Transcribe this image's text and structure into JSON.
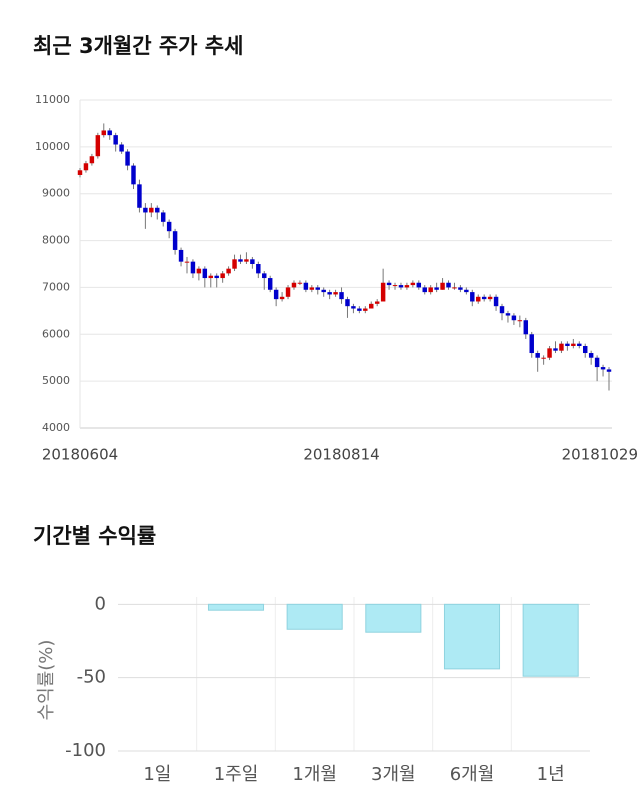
{
  "chart_data": [
    {
      "type": "candlestick",
      "title": "최근 3개월간 주가 추세",
      "categories": [
        "20180604",
        null,
        null,
        null,
        null,
        null,
        null,
        null,
        null,
        null,
        null,
        null,
        null,
        null,
        null,
        null,
        null,
        null,
        null,
        null,
        null,
        null,
        null,
        null,
        null,
        null,
        null,
        null,
        null,
        null,
        null,
        null,
        null,
        null,
        null,
        null,
        null,
        null,
        null,
        null,
        null,
        null,
        null,
        null,
        "20180814",
        null,
        null,
        null,
        null,
        null,
        null,
        null,
        null,
        null,
        null,
        null,
        null,
        null,
        null,
        null,
        null,
        null,
        null,
        null,
        null,
        null,
        null,
        null,
        null,
        null,
        null,
        null,
        null,
        null,
        null,
        null,
        null,
        null,
        null,
        null,
        null,
        null,
        null,
        null,
        null,
        null,
        null,
        null,
        null,
        "20181029"
      ],
      "open": [
        9400,
        9500,
        9650,
        9800,
        10250,
        10350,
        10250,
        10050,
        9900,
        9600,
        9200,
        8700,
        8600,
        8700,
        8600,
        8400,
        8200,
        7800,
        7550,
        7550,
        7300,
        7400,
        7200,
        7250,
        7200,
        7300,
        7400,
        7600,
        7550,
        7600,
        7500,
        7300,
        7200,
        6950,
        6750,
        6800,
        7000,
        7100,
        7100,
        6950,
        7000,
        6950,
        6900,
        6850,
        6900,
        6750,
        6600,
        6550,
        6500,
        6550,
        6650,
        6700,
        7100,
        7050,
        7050,
        7000,
        7050,
        7100,
        7000,
        6900,
        7000,
        6950,
        7100,
        7000,
        7000,
        6950,
        6900,
        6700,
        6800,
        6750,
        6800,
        6600,
        6450,
        6400,
        6300,
        6300,
        6000,
        5600,
        5500,
        5500,
        5700,
        5650,
        5800,
        5750,
        5800,
        5750,
        5600,
        5500,
        5300,
        5250
      ],
      "high": [
        9550,
        9700,
        9850,
        10300,
        10500,
        10400,
        10300,
        10100,
        9950,
        9650,
        9300,
        8800,
        8800,
        8750,
        8650,
        8450,
        8250,
        7850,
        7650,
        7600,
        7450,
        7450,
        7300,
        7300,
        7350,
        7450,
        7700,
        7700,
        7750,
        7650,
        7550,
        7350,
        7250,
        7000,
        6900,
        7050,
        7150,
        7150,
        7150,
        7050,
        7050,
        7000,
        6950,
        6950,
        7000,
        6800,
        6650,
        6600,
        6600,
        6700,
        6750,
        7400,
        7150,
        7100,
        7100,
        7100,
        7150,
        7150,
        7050,
        7050,
        7100,
        7200,
        7150,
        7100,
        7050,
        7000,
        6950,
        6850,
        6850,
        6850,
        6850,
        6650,
        6500,
        6450,
        6400,
        6350,
        6050,
        5650,
        5550,
        5750,
        5850,
        5850,
        5850,
        5900,
        5850,
        5800,
        5650,
        5550,
        5350,
        5300
      ],
      "low": [
        9350,
        9450,
        9600,
        9750,
        10200,
        10150,
        9900,
        9850,
        9500,
        9100,
        8600,
        8250,
        8500,
        8450,
        8300,
        8050,
        7700,
        7450,
        7300,
        7200,
        7150,
        7000,
        7000,
        7000,
        7100,
        7250,
        7350,
        7500,
        7500,
        7400,
        7200,
        6950,
        6900,
        6600,
        6700,
        6750,
        6950,
        7050,
        6900,
        6900,
        6850,
        6800,
        6750,
        6800,
        6650,
        6350,
        6450,
        6450,
        6450,
        6550,
        6600,
        6700,
        6950,
        6950,
        6950,
        6950,
        7000,
        6950,
        6850,
        6850,
        6900,
        6950,
        6950,
        6950,
        6900,
        6850,
        6600,
        6650,
        6700,
        6700,
        6500,
        6300,
        6250,
        6200,
        6150,
        5900,
        5500,
        5200,
        5350,
        5450,
        5600,
        5600,
        5650,
        5700,
        5700,
        5500,
        5350,
        5000,
        5100,
        4800
      ],
      "close": [
        9500,
        9650,
        9800,
        10250,
        10350,
        10250,
        10050,
        9900,
        9600,
        9200,
        8700,
        8600,
        8700,
        8600,
        8400,
        8200,
        7800,
        7550,
        7550,
        7300,
        7400,
        7200,
        7250,
        7200,
        7300,
        7400,
        7600,
        7550,
        7600,
        7500,
        7300,
        7200,
        6950,
        6750,
        6800,
        7000,
        7100,
        7100,
        6950,
        7000,
        6950,
        6900,
        6850,
        6900,
        6750,
        6600,
        6550,
        6500,
        6550,
        6650,
        6700,
        7100,
        7050,
        7050,
        7000,
        7050,
        7100,
        7000,
        6900,
        7000,
        6950,
        7100,
        7000,
        7000,
        6950,
        6900,
        6700,
        6800,
        6750,
        6800,
        6600,
        6450,
        6400,
        6300,
        6300,
        6000,
        5600,
        5500,
        5500,
        5700,
        5650,
        5800,
        5750,
        5800,
        5750,
        5600,
        5500,
        5300,
        5250,
        5200
      ],
      "up_color": "#d40000",
      "down_color": "#0000cc",
      "wick_color": "#777777",
      "ylim": [
        4000,
        11000
      ],
      "yticks": [
        4000,
        5000,
        6000,
        7000,
        8000,
        9000,
        10000,
        11000
      ],
      "grid": true
    },
    {
      "type": "bar",
      "title": "기간별 수익률",
      "ylabel": "수익률(%)",
      "categories": [
        "1일",
        "1주일",
        "1개월",
        "3개월",
        "6개월",
        "1년"
      ],
      "values": [
        0,
        -4,
        -17,
        -19,
        -44,
        -49
      ],
      "color": "#aeeaf4",
      "edge_color": "#8fd3df",
      "ylim": [
        -100,
        5
      ],
      "yticks": [
        0,
        -50,
        -100
      ],
      "grid": true
    }
  ]
}
